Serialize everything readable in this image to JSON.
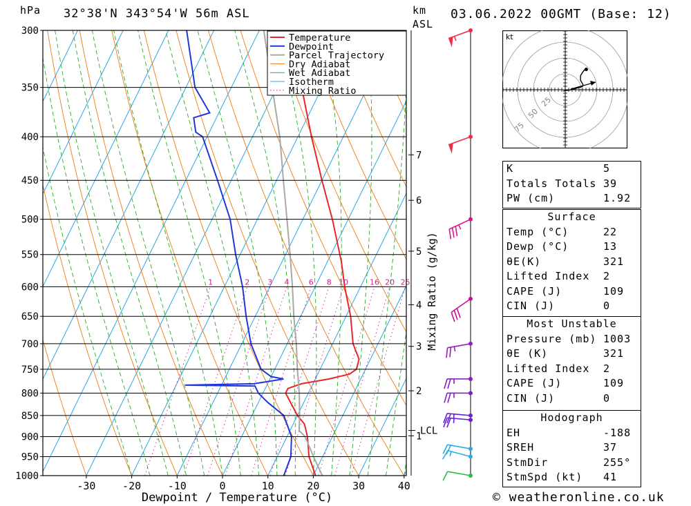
{
  "header": {
    "pressure_unit": "hPa",
    "location": "32°38'N  343°54'W  56m  ASL",
    "km_unit": "km",
    "asl_unit": "ASL",
    "datetime": "03.06.2022  00GMT  (Base: 12)"
  },
  "chart_data": {
    "type": "line",
    "title": "32°38'N 343°54'W 56m ASL",
    "xlabel": "Dewpoint / Temperature (°C)",
    "ylabel": "hPa",
    "x_ticks": [
      -30,
      -20,
      -10,
      0,
      10,
      20,
      30,
      40
    ],
    "y_ticks": [
      300,
      350,
      400,
      450,
      500,
      550,
      600,
      650,
      700,
      750,
      800,
      850,
      900,
      950,
      1000
    ],
    "xlim": [
      -40,
      40
    ],
    "ylim": [
      1000,
      300
    ],
    "skew_per_decade_C": 92,
    "km_ticks": [
      {
        "label": "7",
        "p": 420
      },
      {
        "label": "6",
        "p": 475
      },
      {
        "label": "5",
        "p": 545
      },
      {
        "label": "4",
        "p": 630
      },
      {
        "label": "3",
        "p": 705
      },
      {
        "label": "2",
        "p": 795
      },
      {
        "label": "1",
        "p": 898
      }
    ],
    "lcl": {
      "label": "LCL",
      "p": 885
    },
    "mixing_ratio_label": "Mixing Ratio (g/kg)",
    "mixing_ratio_ticks": [
      "1",
      "2",
      "3",
      "4",
      "6",
      "8",
      "10",
      "16",
      "20",
      "25"
    ],
    "mixing_ratio_values": [
      1,
      2,
      3,
      4,
      6,
      8,
      10,
      16,
      20,
      25
    ],
    "legend": [
      "Temperature",
      "Dewpoint",
      "Parcel Trajectory",
      "Dry Adiabat",
      "Wet Adiabat",
      "Isotherm",
      "Mixing Ratio"
    ],
    "series": [
      {
        "name": "Temperature",
        "color": "#e8262a",
        "points": [
          [
            1000,
            20.5
          ],
          [
            950,
            17
          ],
          [
            900,
            14.5
          ],
          [
            870,
            12.5
          ],
          [
            850,
            10
          ],
          [
            800,
            5
          ],
          [
            790,
            5
          ],
          [
            780,
            7.5
          ],
          [
            770,
            13
          ],
          [
            760,
            17
          ],
          [
            750,
            18
          ],
          [
            730,
            17.5
          ],
          [
            700,
            14.5
          ],
          [
            650,
            11
          ],
          [
            600,
            6.5
          ],
          [
            560,
            3
          ],
          [
            500,
            -3.5
          ],
          [
            450,
            -10
          ],
          [
            400,
            -17
          ],
          [
            350,
            -24.5
          ],
          [
            300,
            -35
          ]
        ]
      },
      {
        "name": "Dewpoint",
        "color": "#1f37d8",
        "points": [
          [
            1000,
            13.5
          ],
          [
            950,
            13
          ],
          [
            900,
            11
          ],
          [
            850,
            7
          ],
          [
            820,
            2
          ],
          [
            800,
            -1
          ],
          [
            785,
            -2.5
          ],
          [
            783,
            -18
          ],
          [
            780,
            -3
          ],
          [
            770,
            3
          ],
          [
            765,
            0
          ],
          [
            750,
            -3
          ],
          [
            700,
            -8
          ],
          [
            650,
            -12
          ],
          [
            600,
            -16
          ],
          [
            550,
            -21
          ],
          [
            500,
            -26
          ],
          [
            450,
            -33
          ],
          [
            400,
            -41
          ],
          [
            395,
            -43
          ],
          [
            380,
            -45
          ],
          [
            375,
            -42
          ],
          [
            350,
            -48
          ],
          [
            300,
            -56
          ]
        ]
      },
      {
        "name": "Parcel Trajectory",
        "color": "#a8a8a8",
        "points": [
          [
            1000,
            22
          ],
          [
            950,
            18
          ],
          [
            900,
            14
          ],
          [
            885,
            12
          ],
          [
            850,
            10.5
          ],
          [
            800,
            8
          ],
          [
            750,
            5
          ],
          [
            700,
            2
          ],
          [
            650,
            -1.5
          ],
          [
            600,
            -5
          ],
          [
            550,
            -9
          ],
          [
            500,
            -13.5
          ],
          [
            450,
            -18.5
          ],
          [
            400,
            -24
          ],
          [
            350,
            -31
          ],
          [
            300,
            -39
          ]
        ]
      }
    ],
    "wind_barbs": [
      {
        "p": 300,
        "dir": 250,
        "kt": 55,
        "color": "#f02c4a"
      },
      {
        "p": 400,
        "dir": 250,
        "kt": 50,
        "color": "#f02c4a"
      },
      {
        "p": 500,
        "dir": 245,
        "kt": 35,
        "color": "#e0128a"
      },
      {
        "p": 620,
        "dir": 235,
        "kt": 30,
        "color": "#c4109a"
      },
      {
        "p": 700,
        "dir": 260,
        "kt": 25,
        "color": "#9b1ac0"
      },
      {
        "p": 770,
        "dir": 270,
        "kt": 25,
        "color": "#8a1cc4"
      },
      {
        "p": 800,
        "dir": 270,
        "kt": 25,
        "color": "#7f1ccb"
      },
      {
        "p": 850,
        "dir": 275,
        "kt": 25,
        "color": "#6a20d2"
      },
      {
        "p": 860,
        "dir": 275,
        "kt": 25,
        "color": "#6a20d2"
      },
      {
        "p": 930,
        "dir": 280,
        "kt": 20,
        "color": "#24a8e8"
      },
      {
        "p": 950,
        "dir": 285,
        "kt": 15,
        "color": "#24b0e8"
      },
      {
        "p": 1000,
        "dir": 280,
        "kt": 10,
        "color": "#22c040"
      }
    ],
    "hodograph": {
      "unit": "kt",
      "ring_labels": [
        "25",
        "50",
        "75"
      ],
      "points": [
        [
          -3,
          -2
        ],
        [
          10,
          0
        ],
        [
          20,
          3
        ],
        [
          27,
          5
        ],
        [
          28,
          8
        ],
        [
          24,
          15
        ],
        [
          24,
          22
        ],
        [
          27,
          27
        ],
        [
          30,
          31
        ],
        [
          33,
          32
        ]
      ]
    }
  },
  "stability": {
    "k_label": "K",
    "k_value": "5",
    "tt_label": "Totals Totals",
    "tt_value": "39",
    "pw_label": "PW (cm)",
    "pw_value": "1.92"
  },
  "surface": {
    "title": "Surface",
    "temp_label": "Temp (°C)",
    "temp_value": "22",
    "dewp_label": "Dewp (°C)",
    "dewp_value": "13",
    "theta_label": "θE(K)",
    "theta_value": "321",
    "li_label": "Lifted Index",
    "li_value": "2",
    "cape_label": "CAPE (J)",
    "cape_value": "109",
    "cin_label": "CIN (J)",
    "cin_value": "0"
  },
  "most_unstable": {
    "title": "Most Unstable",
    "pressure_label": "Pressure (mb)",
    "pressure_value": "1003",
    "theta_label": "θE (K)",
    "theta_value": "321",
    "li_label": "Lifted Index",
    "li_value": "2",
    "cape_label": "CAPE (J)",
    "cape_value": "109",
    "cin_label": "CIN (J)",
    "cin_value": "0"
  },
  "hodograph_table": {
    "title": "Hodograph",
    "eh_label": "EH",
    "eh_value": "-188",
    "srh_label": "SREH",
    "srh_value": "37",
    "dir_label": "StmDir",
    "dir_value": "255°",
    "spd_label": "StmSpd (kt)",
    "spd_value": "41"
  },
  "footer": {
    "credit": "© weatheronline.co.uk"
  }
}
